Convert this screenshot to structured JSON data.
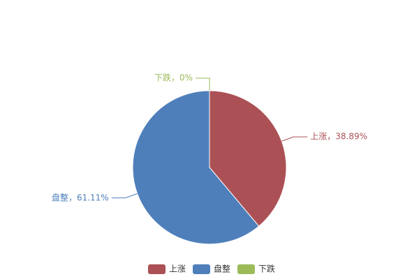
{
  "chart_data": {
    "type": "pie",
    "categories": [
      "上涨",
      "盘整",
      "下跌"
    ],
    "values": [
      38.89,
      61.11,
      0
    ],
    "value_labels": [
      "上涨，38.89%",
      "盘整，61.11%",
      "下跌，0%"
    ],
    "colors": [
      "#ab5155",
      "#4e7fbb",
      "#9bbb59"
    ],
    "legend": "bottom"
  }
}
